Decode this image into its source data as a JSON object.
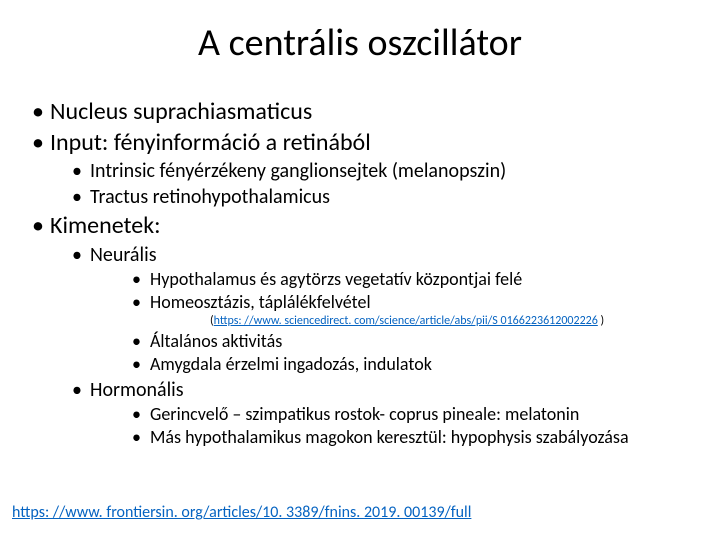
{
  "title": "A centrális oszcillátor",
  "b1": "Nucleus suprachiasmaticus",
  "b2": "Input: fényinformáció a retinából",
  "b2_1": "Intrinsic fényérzékeny ganglionsejtek (melanopszin)",
  "b2_2": "Tractus retinohypothalamicus",
  "b3": "Kimenetek:",
  "b3_1": "Neurális",
  "b3_1_1": "Hypothalamus és agytörzs vegetatív központjai felé",
  "b3_1_2": "Homeosztázis, táplálékfelvétel",
  "b3_1_2_link_text": "https: //www. sciencedirect. com/science/article/abs/pii/S 0166223612002226",
  "b3_1_2_link_href": "https://www.sciencedirect.com/science/article/abs/pii/S0166223612002226",
  "b3_1_3": "Általános aktivitás",
  "b3_1_4": "Amygdala érzelmi ingadozás, indulatok",
  "b3_2": "Hormonális",
  "b3_2_1": "Gerincvelő – szimpatikus rostok- coprus pineale: melatonin",
  "b3_2_2": "Más hypothalamikus magokon keresztül: hypophysis szabályozása",
  "bottom_link_text": "https: //www. frontiersin. org/articles/10. 3389/fnins. 2019. 00139/full",
  "bottom_link_href": "https://www.frontiersin.org/articles/10.3389/fnins.2019.00139/full",
  "colors": {
    "background": "#ffffff",
    "text": "#000000",
    "link": "#0563c1"
  },
  "fontsizes": {
    "title": 38,
    "lvl1": 24,
    "lvl2": 20,
    "lvl3": 18,
    "small_link": 12,
    "bottom_link": 16
  }
}
